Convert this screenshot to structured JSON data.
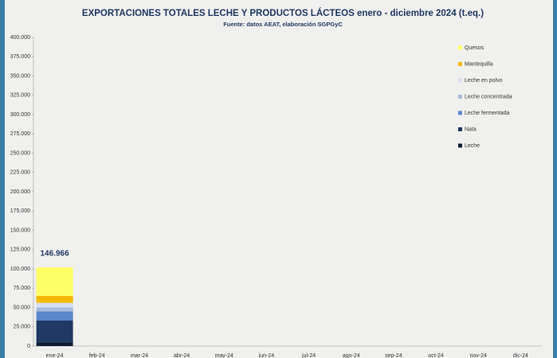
{
  "chart_data": {
    "type": "stacked-bar",
    "title": "EXPORTACIONES TOTALES LECHE Y PRODUCTOS LÁCTEOS enero - diciembre 2024 (t.eq.)",
    "subtitle": "Fuente: datos AEAT, elaboración SGPGyC",
    "annotation": "146.966",
    "categories": [
      "ene-24",
      "feb-24",
      "mar-24",
      "abr-24",
      "may-24",
      "jun-24",
      "jul-24",
      "ago-24",
      "sep-24",
      "oct-24",
      "nov-24",
      "dic-24"
    ],
    "series": [
      {
        "name": "Leche",
        "color": "#0d1b33",
        "values": [
          5000,
          null,
          null,
          null,
          null,
          null,
          null,
          null,
          null,
          null,
          null,
          null
        ]
      },
      {
        "name": "Nata",
        "color": "#1f3864",
        "values": [
          28000,
          null,
          null,
          null,
          null,
          null,
          null,
          null,
          null,
          null,
          null,
          null
        ]
      },
      {
        "name": "Leche fermentada",
        "color": "#5b87cc",
        "values": [
          12000,
          null,
          null,
          null,
          null,
          null,
          null,
          null,
          null,
          null,
          null,
          null
        ]
      },
      {
        "name": "Leche concentrada",
        "color": "#a6bbe0",
        "values": [
          5000,
          null,
          null,
          null,
          null,
          null,
          null,
          null,
          null,
          null,
          null,
          null
        ]
      },
      {
        "name": "Leche en polvo",
        "color": "#d6dff0",
        "values": [
          6000,
          null,
          null,
          null,
          null,
          null,
          null,
          null,
          null,
          null,
          null,
          null
        ]
      },
      {
        "name": "Mantequilla",
        "color": "#f5b800",
        "values": [
          9000,
          null,
          null,
          null,
          null,
          null,
          null,
          null,
          null,
          null,
          null,
          null
        ]
      },
      {
        "name": "Quesos",
        "color": "#ffff66",
        "values": [
          37000,
          null,
          null,
          null,
          null,
          null,
          null,
          null,
          null,
          null,
          null,
          null
        ]
      }
    ],
    "ylim": [
      0,
      400000
    ],
    "yticks": [
      0,
      {
        "value": 25000,
        "label": "25.000"
      },
      {
        "value": 50000,
        "label": "50.000"
      },
      {
        "value": 75000,
        "label": "75.000"
      },
      {
        "value": 100000,
        "label": "100.000"
      },
      {
        "value": 125000,
        "label": "125.000"
      },
      {
        "value": 150000,
        "label": "150.000"
      },
      {
        "value": 175000,
        "label": "175.000"
      },
      {
        "value": 200000,
        "label": "200.000"
      },
      {
        "value": 225000,
        "label": "225.000"
      },
      {
        "value": 250000,
        "label": "250.000"
      },
      {
        "value": 275000,
        "label": "275.000"
      },
      {
        "value": 300000,
        "label": "300.000"
      },
      {
        "value": 325000,
        "label": "325.000"
      },
      {
        "value": 350000,
        "label": "350.000"
      },
      {
        "value": 375000,
        "label": "375.000"
      },
      {
        "value": 400000,
        "label": "400.000"
      }
    ],
    "legend": "top-right"
  }
}
